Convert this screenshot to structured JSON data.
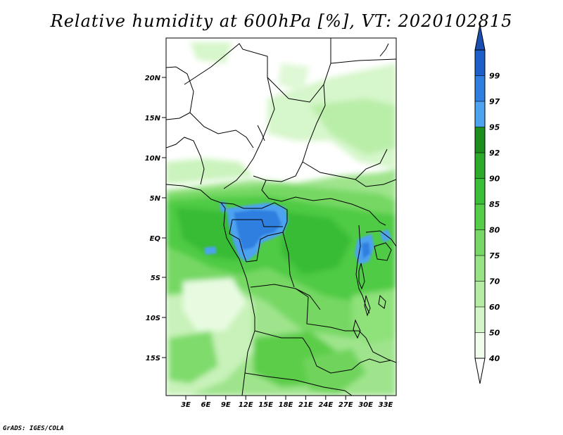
{
  "title": "Relative humidity at 600hPa [%], VT: 2020102815",
  "credit": "GrADS: IGES/COLA",
  "map": {
    "lat_labels": [
      "20N",
      "15N",
      "10N",
      "5N",
      "EQ",
      "5S",
      "10S",
      "15S"
    ],
    "lon_labels": [
      "3E",
      "6E",
      "9E",
      "12E",
      "15E",
      "18E",
      "21E",
      "24E",
      "27E",
      "30E",
      "33E"
    ]
  },
  "colorbar": {
    "labels": [
      "40",
      "50",
      "60",
      "70",
      "75",
      "80",
      "85",
      "90",
      "92",
      "95",
      "97",
      "99"
    ],
    "colors": [
      "#f0fdec",
      "#d3f6c8",
      "#b6eda5",
      "#98e385",
      "#77d866",
      "#55cd48",
      "#3cbf38",
      "#2eaa2b",
      "#1b8e1c",
      "#4da3f0",
      "#2f7fe0",
      "#1d5fc8"
    ],
    "under_color": "#ffffff",
    "over_color": "#1a4fb0"
  }
}
